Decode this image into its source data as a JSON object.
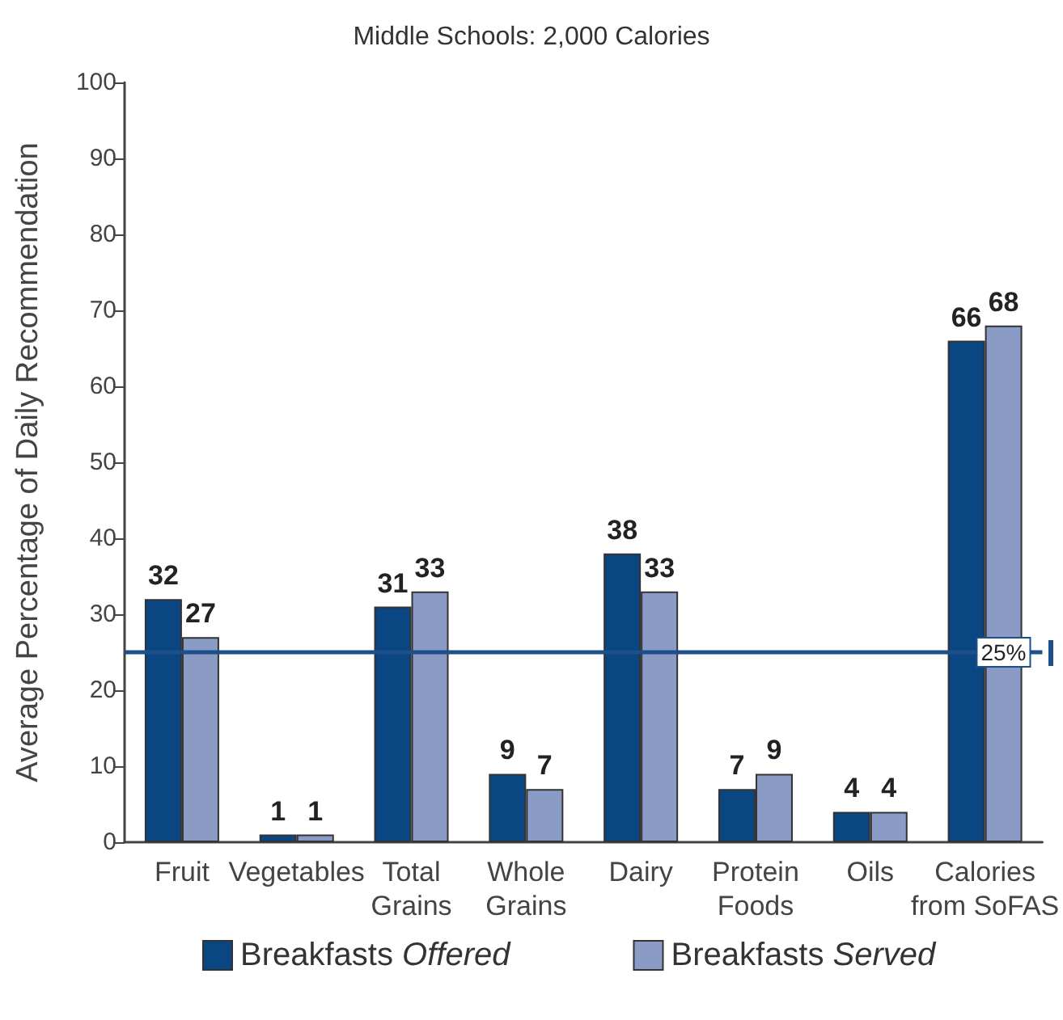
{
  "chart_data": {
    "type": "bar",
    "title": "Middle Schools: 2,000 Calories",
    "ylabel": "Average Percentage of Daily Recommendation",
    "categories": [
      "Fruit",
      "Vegetables",
      "Total Grains",
      "Whole Grains",
      "Dairy",
      "Protein Foods",
      "Oils",
      "Calories from SoFAS"
    ],
    "series": [
      {
        "name": "Breakfasts Offered",
        "color": "#0a4682",
        "values": [
          32,
          1,
          31,
          9,
          38,
          7,
          4,
          66
        ]
      },
      {
        "name": "Breakfasts Served",
        "color": "#8a9cc6",
        "values": [
          27,
          1,
          33,
          7,
          33,
          9,
          4,
          68
        ]
      }
    ],
    "ylim": [
      0,
      100
    ],
    "yticks": [
      0,
      10,
      20,
      30,
      40,
      50,
      60,
      70,
      80,
      90,
      100
    ],
    "legend": "bottom",
    "data_labels": true,
    "ref_lines": [
      {
        "axis": "y",
        "value": 25,
        "label": "25%",
        "color": "#1d4f8a"
      }
    ]
  }
}
